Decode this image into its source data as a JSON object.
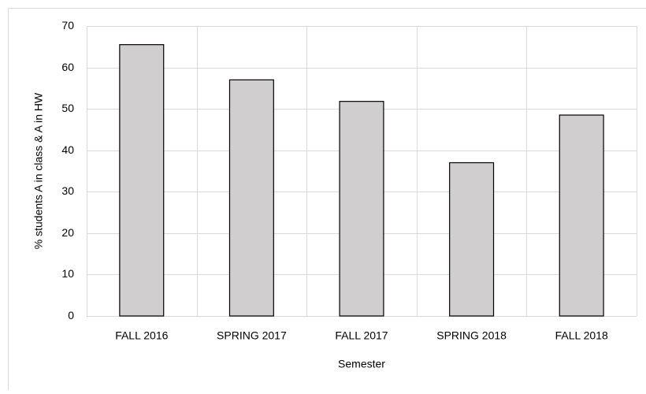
{
  "chart_data": {
    "type": "bar",
    "x_label": "Semester",
    "y_label": "% students A in class & A in HW",
    "categories": [
      "FALL 2016",
      "SPRING 2017",
      "FALL 2017",
      "SPRING 2018",
      "FALL 2018"
    ],
    "values": [
      65.5,
      57,
      51.8,
      37,
      48.5
    ],
    "color": "#d0cece",
    "ylim": [
      0,
      70
    ],
    "yticks": [
      0,
      10,
      20,
      30,
      40,
      50,
      60,
      70
    ],
    "grid": true
  }
}
